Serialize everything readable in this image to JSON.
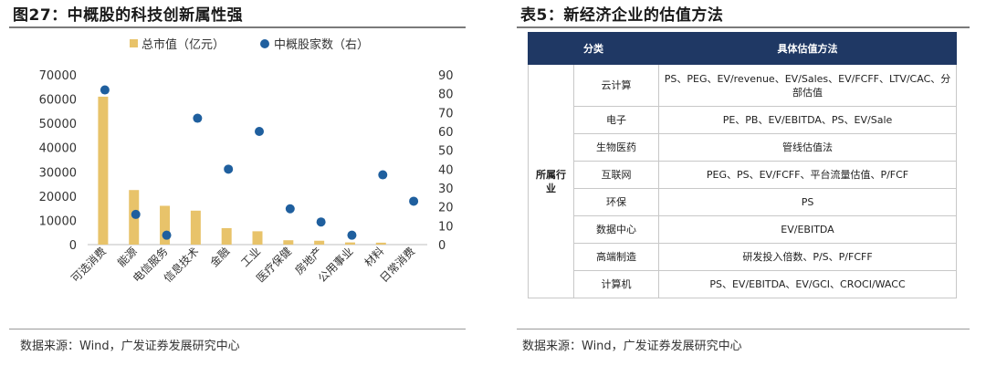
{
  "left_panel": {
    "title": "图27：中概股的科技创新属性强",
    "source": "数据来源：Wind，广发证券发展研究中心"
  },
  "right_panel": {
    "title": "表5：新经济企业的估值方法",
    "source": "数据来源：Wind，广发证券发展研究中心",
    "table": {
      "headers": [
        "分类",
        "具体估值方法"
      ],
      "group_label": "所属行业",
      "rows": [
        {
          "category": "云计算",
          "method": "PS、PEG、EV/revenue、EV/Sales、EV/FCFF、LTV/CAC、分部估值"
        },
        {
          "category": "电子",
          "method": "PE、PB、EV/EBITDA、PS、EV/Sale"
        },
        {
          "category": "生物医药",
          "method": "管线估值法"
        },
        {
          "category": "互联网",
          "method": "PEG、PS、EV/FCFF、平台流量估值、P/FCF"
        },
        {
          "category": "环保",
          "method": "PS"
        },
        {
          "category": "数据中心",
          "method": "EV/EBITDA"
        },
        {
          "category": "高端制造",
          "method": "研发投入倍数、P/S、P/FCFF"
        },
        {
          "category": "计算机",
          "method": "PS、EV/EBITDA、EV/GCI、CROCI/WACC"
        }
      ]
    }
  },
  "chart_data": {
    "type": "bar",
    "categories": [
      "可选消费",
      "能源",
      "电信服务",
      "信息技术",
      "金融",
      "工业",
      "医疗保健",
      "房地产",
      "公用事业",
      "材料",
      "日常消费"
    ],
    "series": [
      {
        "name": "总市值（亿元）",
        "type": "bar",
        "axis": "left",
        "color": "#e8c36a",
        "values": [
          61000,
          22500,
          16000,
          14000,
          6800,
          5500,
          1800,
          1600,
          900,
          800,
          0
        ]
      },
      {
        "name": "中概股家数（右）",
        "type": "scatter",
        "axis": "right",
        "color": "#1f5f9e",
        "values": [
          82,
          16,
          5,
          67,
          40,
          60,
          19,
          12,
          5,
          37,
          23
        ]
      }
    ],
    "y_left": {
      "min": 0,
      "max": 70000,
      "ticks": [
        "0",
        "10000",
        "20000",
        "30000",
        "40000",
        "50000",
        "60000",
        "70000"
      ]
    },
    "y_right": {
      "min": 0,
      "max": 90,
      "ticks": [
        "0",
        "10",
        "20",
        "30",
        "40",
        "50",
        "60",
        "70",
        "80",
        "90"
      ]
    },
    "legend_position": "top",
    "grid": false
  }
}
